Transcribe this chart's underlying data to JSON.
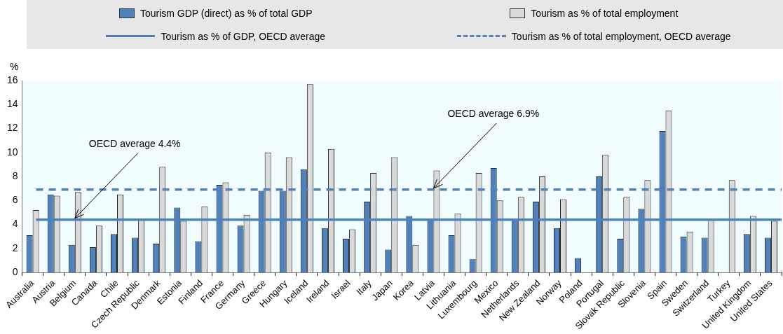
{
  "chart_data": {
    "type": "bar",
    "ylabel": "%",
    "categories": [
      "Australia",
      "Austria",
      "Belgium",
      "Canada",
      "Chile",
      "Czech Republic",
      "Denmark",
      "Estonia",
      "Finland",
      "France",
      "Germany",
      "Greece",
      "Hungary",
      "Iceland",
      "Ireland",
      "Israel",
      "Italy",
      "Japan",
      "Korea",
      "Latvia",
      "Lithuania",
      "Luxembourg",
      "Mexico",
      "Netherlands",
      "New Zealand",
      "Norway",
      "Poland",
      "Portugal",
      "Slovak Republic",
      "Slovenia",
      "Spain",
      "Sweden",
      "Switzerland",
      "Turkey",
      "United Kingdom",
      "United States"
    ],
    "series": [
      {
        "name": "Tourism GDP (direct) as % of total GDP",
        "color": "#4f81bd",
        "values": [
          3.1,
          6.5,
          2.3,
          2.1,
          3.2,
          2.9,
          2.4,
          5.4,
          2.6,
          7.3,
          3.9,
          6.8,
          6.8,
          8.6,
          3.7,
          2.8,
          5.9,
          1.9,
          4.7,
          4.4,
          3.1,
          1.1,
          8.7,
          4.4,
          5.9,
          3.7,
          1.2,
          8.0,
          2.8,
          5.3,
          11.8,
          3.0,
          2.9,
          null,
          3.2,
          2.9
        ]
      },
      {
        "name": "Tourism as % of total employment",
        "color": "#d9d9d9",
        "values": [
          5.2,
          6.4,
          6.7,
          3.9,
          6.5,
          4.4,
          8.8,
          4.3,
          5.5,
          7.5,
          4.8,
          10.0,
          9.6,
          15.7,
          10.3,
          3.6,
          8.3,
          9.6,
          2.3,
          8.5,
          4.9,
          8.3,
          6.0,
          6.3,
          8.0,
          6.1,
          null,
          9.8,
          6.3,
          7.7,
          13.5,
          3.4,
          4.4,
          7.7,
          4.7,
          4.3
        ]
      }
    ],
    "ref_lines": [
      {
        "axis": "y",
        "value": 4.4,
        "label": "Tourism as % of GDP, OECD average",
        "color": "#4f81bd",
        "line_style": "solid"
      },
      {
        "axis": "y",
        "value": 6.9,
        "label": "Tourism as % of total employment, OECD average",
        "color": "#4f81bd",
        "line_style": "dashed"
      }
    ],
    "annotations": [
      {
        "text": "OECD average 4.4%",
        "x": "Belgium",
        "y": 4.4
      },
      {
        "text": "OECD average 6.9%",
        "x": "Latvia",
        "y": 6.9
      }
    ],
    "ylim": [
      0,
      16
    ],
    "yticks": [
      0,
      2,
      4,
      6,
      8,
      10,
      12,
      14,
      16
    ],
    "legend": "top"
  }
}
